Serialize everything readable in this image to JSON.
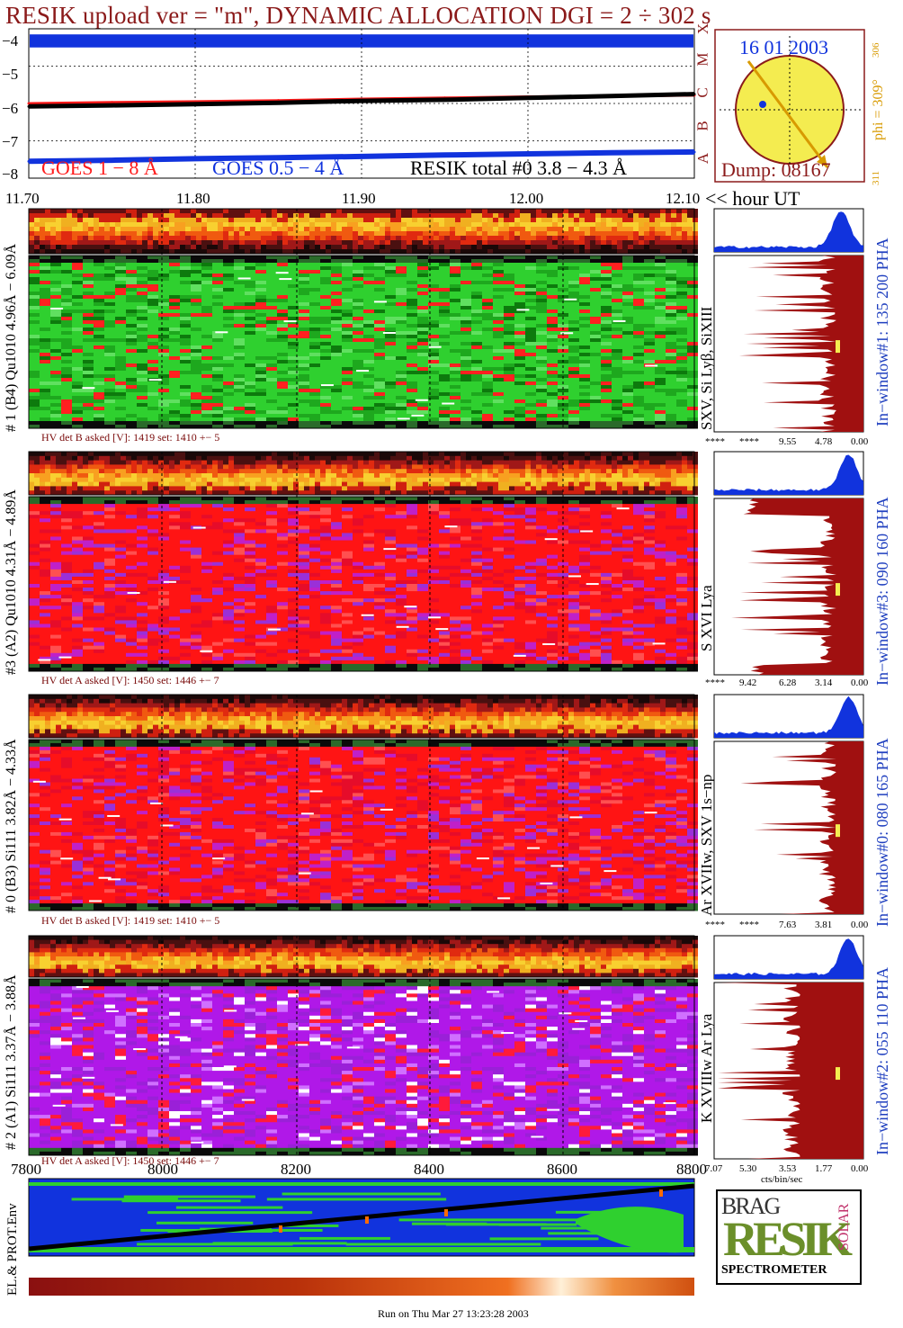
{
  "header": {
    "title": "RESIK upload ver = \"m\", DYNAMIC ALLOCATION  DGI =   2 ÷ 302 s"
  },
  "goes_panel": {
    "y_ticks": [
      "−4",
      "−5",
      "−6",
      "−7",
      "−8"
    ],
    "class_letters": [
      "A",
      "B",
      "C",
      "M",
      "X"
    ],
    "legend": {
      "goes_long": "GOES 1 − 8 Å",
      "goes_short": "GOES 0.5 − 4 Å",
      "resik_total": "RESIK total #0  3.8 − 4.3 Å"
    },
    "colors": {
      "goes_long": "#ff1a1a",
      "goes_short": "#1133dd",
      "resik": "#000000"
    }
  },
  "sun_panel": {
    "date": "16 01 2003",
    "phi": "phi = 309°",
    "phi_sub": "306",
    "side_mark": "311",
    "dump": "Dump: 08167",
    "disc_color": "#f4ec50"
  },
  "time_axis": {
    "ticks": [
      "11.70",
      "11.80",
      "11.90",
      "12.00",
      "12.10"
    ],
    "unit_label": "<< hour UT"
  },
  "channels": [
    {
      "left_label": "# 1 (B4) Qu1010 4.96Å − 6.09Å",
      "lines_label": "SXV, Si Lyβ, SiXIII",
      "window_label": "In−window#1:  135 200 PHA",
      "hv_text": "HV det B asked [V]:  1419 set:  1410  +−   5",
      "pha_ticks": [
        "****",
        "****",
        "9.55",
        "4.78",
        "0.00"
      ]
    },
    {
      "left_label": "#3 (A2) Qu1010  4.31Å − 4.89Å",
      "lines_label": "S XVI Lya",
      "window_label": "In−window#3:  090 160 PHA",
      "hv_text": "HV det A asked [V]:  1450 set:  1446  +−   7",
      "pha_ticks": [
        "****",
        "9.42",
        "6.28",
        "3.14",
        "0.00"
      ]
    },
    {
      "left_label": "# 0 (B3) Si111  3.82Å − 4.33Å",
      "lines_label": "Ar XVIIw,  SXV 1s−np",
      "window_label": "In−window#0:  080 165 PHA",
      "hv_text": "HV det B asked [V]:  1419 set:  1410  +−   5",
      "pha_ticks": [
        "****",
        "****",
        "7.63",
        "3.81",
        "0.00"
      ]
    },
    {
      "left_label": "# 2 (A1) Si111  3.37Å − 3.88Å",
      "lines_label": "K XVIIIw  Ar Lya",
      "window_label": "In−window#2:  055 110 PHA",
      "hv_text": "HV det A asked [V]:  1450 set:  1446  +−   7",
      "pha_ticks": [
        "7.07",
        "5.30",
        "3.53",
        "1.77",
        "0.00"
      ]
    }
  ],
  "pha_unit": "cts/bin/sec",
  "env_panel": {
    "label": "EL.& PROT.Env",
    "x_ticks": [
      "7800",
      "8000",
      "8200",
      "8400",
      "8600",
      "8800"
    ]
  },
  "logo": {
    "letters": [
      "BRAG",
      "RESIK",
      "SOLAR"
    ],
    "caption": "SPECTROMETER"
  },
  "footer": "Run on Thu Mar 27 13:23:28 2003",
  "chart_data": [
    {
      "type": "line",
      "title": "",
      "xlabel": "<< hour UT",
      "ylabel": "",
      "x": [
        11.7,
        11.75,
        11.8,
        11.85,
        11.9,
        11.95,
        12.0,
        12.05,
        12.1
      ],
      "xlim": [
        11.7,
        12.1
      ],
      "ylim": [
        -8,
        -4
      ],
      "series": [
        {
          "name": "GOES 1 − 8 Å",
          "values": [
            -6.0,
            -5.97,
            -5.95,
            -5.92,
            -5.88,
            -5.85,
            -5.82,
            -5.8,
            -5.78
          ]
        },
        {
          "name": "GOES 0.5 − 4 Å",
          "values": [
            -7.55,
            -7.52,
            -7.48,
            -7.45,
            -7.42,
            -7.38,
            -7.35,
            -7.32,
            -7.3
          ]
        },
        {
          "name": "RESIK total #0  3.8 − 4.3 Å",
          "values": [
            -6.08,
            -6.05,
            -6.02,
            -5.98,
            -5.93,
            -5.9,
            -5.85,
            -5.8,
            -5.75
          ]
        }
      ]
    }
  ]
}
